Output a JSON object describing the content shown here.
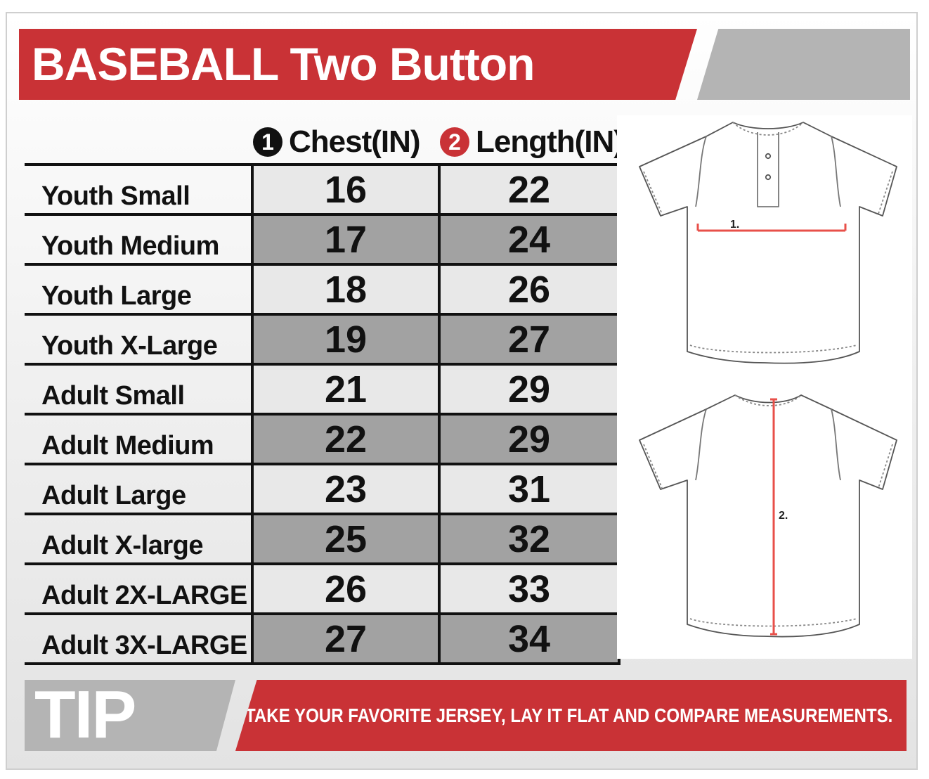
{
  "header": {
    "title": "BASEBALL Two Button"
  },
  "columns": [
    {
      "number": "1",
      "label": "Chest(IN)"
    },
    {
      "number": "2",
      "label": "Length(IN)"
    }
  ],
  "rows": [
    {
      "size": "Youth Small",
      "chest": "16",
      "length": "22"
    },
    {
      "size": "Youth Medium",
      "chest": "17",
      "length": "24"
    },
    {
      "size": "Youth Large",
      "chest": "18",
      "length": "26"
    },
    {
      "size": "Youth X-Large",
      "chest": "19",
      "length": "27"
    },
    {
      "size": "Adult Small",
      "chest": "21",
      "length": "29"
    },
    {
      "size": "Adult Medium",
      "chest": "22",
      "length": "29"
    },
    {
      "size": "Adult Large",
      "chest": "23",
      "length": "31"
    },
    {
      "size": "Adult X-large",
      "chest": "25",
      "length": "32"
    },
    {
      "size": "Adult 2X-LARGE",
      "chest": "26",
      "length": "33"
    },
    {
      "size": "Adult 3X-LARGE",
      "chest": "27",
      "length": "34"
    }
  ],
  "diagram": {
    "chest_marker": "1.",
    "length_marker": "2."
  },
  "tip": {
    "label": "TIP",
    "text": "TAKE YOUR FAVORITE JERSEY, LAY IT FLAT AND COMPARE MEASUREMENTS."
  },
  "colors": {
    "brand_red": "#c93236",
    "banner_grey": "#b4b4b4",
    "row_light": "#e8e8e8",
    "row_dark": "#a2a2a2",
    "circle_black": "#111111",
    "measure_line": "#e8504a"
  }
}
